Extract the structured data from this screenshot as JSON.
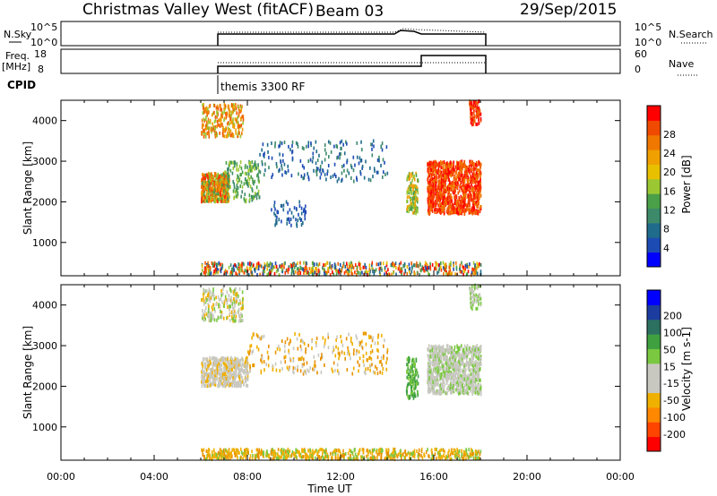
{
  "header": {
    "site": "Christmas Valley West (fitACF)",
    "beam": "Beam 03",
    "date": "29/Sep/2015"
  },
  "top_panels": {
    "nsky_label": "N.Sky",
    "nsky_ticks": [
      "10^5",
      "10^0"
    ],
    "nsearch_label": "N.Search",
    "nsearch_ticks": [
      "10^5",
      "10^0"
    ],
    "freq_label": "Freq.",
    "freq_unit": "[MHz]",
    "freq_ticks": [
      "18",
      "8"
    ],
    "nave_label": "Nave",
    "nave_ticks": [
      "60",
      "0"
    ],
    "cpid_label": "CPID",
    "cpid_value": "themis 3300 RF"
  },
  "chart_data": [
    {
      "type": "heatmap",
      "name": "power",
      "ylabel": "Slant Range [km]",
      "yticks": [
        "4000",
        "3000",
        "2000",
        "1000"
      ],
      "ylim": [
        180,
        4500
      ],
      "xlim": [
        0,
        24
      ],
      "colorbar_label": "Power [dB]",
      "colorbar_ticks": [
        "28",
        "24",
        "20",
        "16",
        "12",
        "8",
        "4"
      ],
      "colorbar_colors": [
        "#0000ff",
        "#1d4bb4",
        "#1f6b8c",
        "#3d8a6a",
        "#4aa048",
        "#9bc832",
        "#e8c000",
        "#f0a000",
        "#f07800",
        "#f04a00",
        "#ff0000"
      ]
    },
    {
      "type": "heatmap",
      "name": "velocity",
      "ylabel": "Slant Range [km]",
      "yticks": [
        "4000",
        "3000",
        "2000",
        "1000"
      ],
      "ylim": [
        180,
        4500
      ],
      "xlim": [
        0,
        24
      ],
      "colorbar_label": "Velocity [m s-1]",
      "colorbar_ticks": [
        "200",
        "100",
        "50",
        "15",
        "-15",
        "-50",
        "-100",
        "-200"
      ],
      "colorbar_colors": [
        "#ff0000",
        "#ff4400",
        "#ff8800",
        "#f0b000",
        "#c8c8c0",
        "#c8c8c0",
        "#7ac840",
        "#3fa040",
        "#2c7060",
        "#1c3ca0",
        "#0000ff"
      ]
    }
  ],
  "xaxis": {
    "label": "Time UT",
    "ticks": [
      "00:00",
      "04:00",
      "08:00",
      "12:00",
      "16:00",
      "20:00",
      "00:00"
    ]
  }
}
